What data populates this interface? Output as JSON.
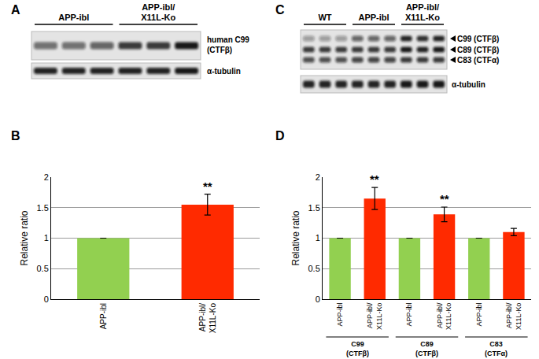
{
  "panels": {
    "A": {
      "letter": "A",
      "groups": [
        "APP-ibl",
        "APP-ibl/X11L-Ko"
      ],
      "bands": [
        "human C99 (CTFβ)"
      ],
      "loading": "α-tubulin"
    },
    "C": {
      "letter": "C",
      "groups": [
        "WT",
        "APP-ibl",
        "APP-ibl/X11L-Ko"
      ],
      "bands": [
        "C99 (CTFβ)",
        "C89 (CTFβ)",
        "C83 (CTFα)"
      ],
      "loading": "α-tubulin"
    }
  },
  "chart_data": [
    {
      "panel": "B",
      "type": "bar",
      "categories": [
        "APP-ibl",
        "APP-ibl/X11L-Ko"
      ],
      "values": [
        1,
        1.55
      ],
      "error": [
        0,
        0.17
      ],
      "colors": [
        "#92d050",
        "#ff2a00"
      ],
      "significance": [
        null,
        "**"
      ],
      "ylabel": "Relative ratio",
      "ylim": [
        0,
        2
      ],
      "yticks": [
        0,
        0.5,
        1,
        1.5,
        2
      ],
      "grid": true
    },
    {
      "panel": "D",
      "type": "bar",
      "categories": [
        "APP-ibl",
        "APP-ibl/X11L-Ko",
        "APP-ibl",
        "APP-ibl/X11L-Ko",
        "APP-ibl",
        "APP-ibl/X11L-Ko"
      ],
      "groups": [
        "C99 (CTFβ)",
        "C89 (CTFβ)",
        "C83 (CTFα)"
      ],
      "values": [
        1,
        1.65,
        1,
        1.39,
        1,
        1.1
      ],
      "error": [
        0,
        0.18,
        0,
        0.12,
        0,
        0.06
      ],
      "colors": [
        "#92d050",
        "#ff2a00",
        "#92d050",
        "#ff2a00",
        "#92d050",
        "#ff2a00"
      ],
      "significance": [
        null,
        "**",
        null,
        "**",
        null,
        null
      ],
      "ylabel": "Relative ratio",
      "ylim": [
        0,
        2
      ],
      "yticks": [
        0,
        0.5,
        1,
        1.5,
        2
      ],
      "grid": true
    }
  ]
}
